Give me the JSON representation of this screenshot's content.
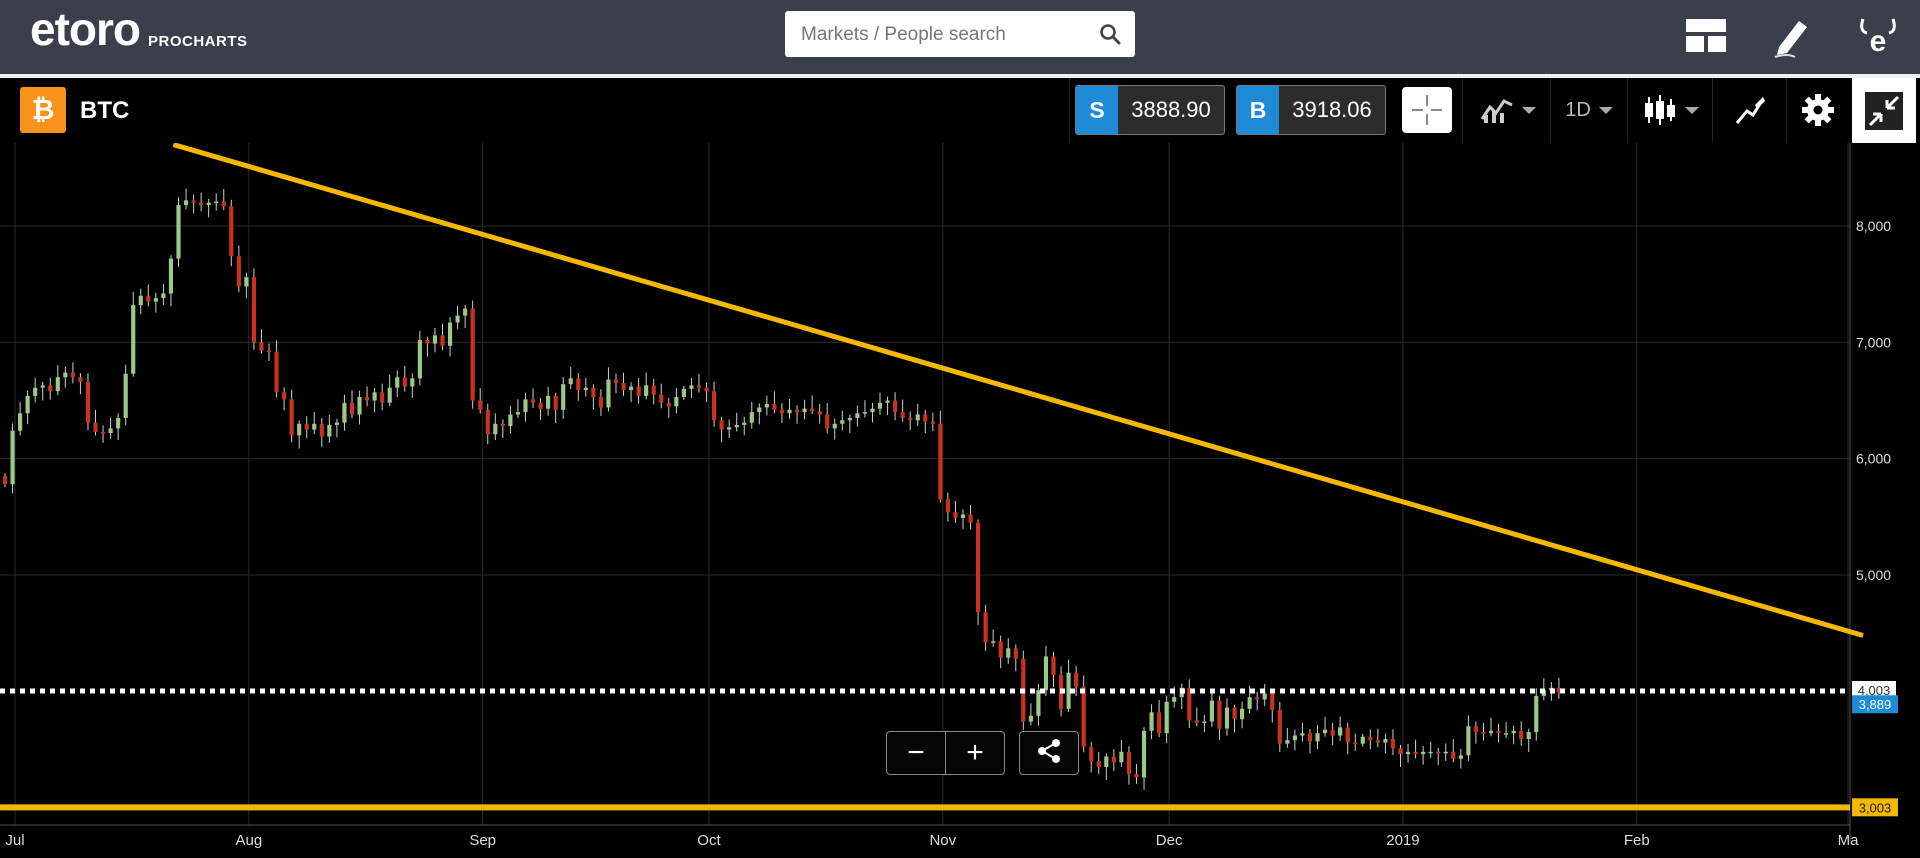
{
  "header": {
    "logo_word": "etoro",
    "logo_sub": "PROCHARTS",
    "search_placeholder": "Markets / People search"
  },
  "instrument": {
    "symbol_glyph": "₿",
    "name": "BTC",
    "sell_tag": "S",
    "sell_price": "3888.90",
    "buy_tag": "B",
    "buy_price": "3918.06",
    "timeframe": "1D"
  },
  "icons": {
    "layout": "layout-icon",
    "edit": "pencil-icon",
    "profile": "etoro-e-icon",
    "crosshair": "crosshair-icon",
    "compare": "compare-chart-icon",
    "candles": "candlestick-icon",
    "draw": "drawing-tools-icon",
    "settings": "gear-icon",
    "collapse": "collapse-icon",
    "search": "search-icon",
    "share": "share-icon"
  },
  "colors": {
    "up_candle": "#9cc98a",
    "down_candle": "#c8321e",
    "trendline": "#f5b800",
    "price_line": "#ffffff",
    "accent_blue": "#1f8bd6",
    "grid": "#2a2a2a"
  },
  "zoom": {
    "minus_label": "−",
    "plus_label": "+"
  },
  "chart_data": {
    "type": "candlestick",
    "y_ticks": [
      "8,000",
      "7,000",
      "6,000",
      "5,000"
    ],
    "y_tick_values": [
      8000,
      7000,
      6000,
      5000
    ],
    "ylim": [
      2900,
      8700
    ],
    "x_ticks": [
      "Jul",
      "Aug",
      "Sep",
      "Oct",
      "Nov",
      "Dec",
      "2019",
      "Feb",
      "Ma"
    ],
    "x_tick_dates": [
      "2018-07-01",
      "2018-08-01",
      "2018-09-01",
      "2018-10-01",
      "2018-11-01",
      "2018-12-01",
      "2019-01-01",
      "2019-02-01",
      "2019-03-01"
    ],
    "daily_close": [
      5780,
      6240,
      6390,
      6540,
      6610,
      6630,
      6580,
      6700,
      6740,
      6700,
      6660,
      6310,
      6230,
      6220,
      6260,
      6350,
      6730,
      7320,
      7400,
      7350,
      7380,
      7420,
      7720,
      8180,
      8220,
      8200,
      8180,
      8200,
      8210,
      8170,
      7740,
      7480,
      7560,
      7000,
      6930,
      6920,
      6570,
      6510,
      6200,
      6300,
      6250,
      6300,
      6190,
      6290,
      6310,
      6480,
      6380,
      6530,
      6500,
      6570,
      6480,
      6610,
      6700,
      6620,
      6690,
      7020,
      6990,
      7060,
      6970,
      7170,
      7230,
      7290,
      6500,
      6420,
      6210,
      6300,
      6280,
      6380,
      6400,
      6510,
      6480,
      6430,
      6540,
      6420,
      6640,
      6690,
      6590,
      6610,
      6530,
      6440,
      6680,
      6650,
      6590,
      6620,
      6540,
      6630,
      6550,
      6480,
      6450,
      6530,
      6600,
      6630,
      6610,
      6580,
      6330,
      6250,
      6270,
      6290,
      6310,
      6400,
      6440,
      6470,
      6420,
      6390,
      6420,
      6400,
      6430,
      6410,
      6380,
      6260,
      6300,
      6330,
      6350,
      6390,
      6400,
      6430,
      6480,
      6500,
      6400,
      6350,
      6330,
      6380,
      6320,
      6300,
      5650,
      5540,
      5490,
      5520,
      5450,
      4680,
      4420,
      4430,
      4290,
      4370,
      4280,
      3740,
      3790,
      4010,
      4300,
      4140,
      3850,
      4160,
      4040,
      3520,
      3400,
      3350,
      3440,
      3390,
      3480,
      3290,
      3260,
      3660,
      3820,
      3640,
      3910,
      3950,
      4030,
      3750,
      3730,
      3740,
      3920,
      3680,
      3860,
      3760,
      3850,
      3950,
      3930,
      3980,
      3840,
      3550,
      3580,
      3620,
      3640,
      3570,
      3640,
      3670,
      3620,
      3690,
      3560,
      3550,
      3610,
      3580,
      3560,
      3590,
      3510,
      3460,
      3480,
      3460,
      3480,
      3480,
      3470,
      3480,
      3420,
      3450,
      3700,
      3650,
      3640,
      3660,
      3640,
      3640,
      3660,
      3590,
      3650,
      3960,
      4010,
      4030,
      3990
    ],
    "trendline": [
      {
        "date": "2018-07-22",
        "value": 8700
      },
      {
        "date": "2019-03-03",
        "value": 4480
      }
    ],
    "horizontal_lines": [
      {
        "value": 4003,
        "label": "4,003",
        "style": "dotted"
      },
      {
        "value": 3003,
        "label": "3,003",
        "style": "solid"
      }
    ],
    "current_price": {
      "value": 3889,
      "label": "3,889"
    },
    "grid": true
  }
}
